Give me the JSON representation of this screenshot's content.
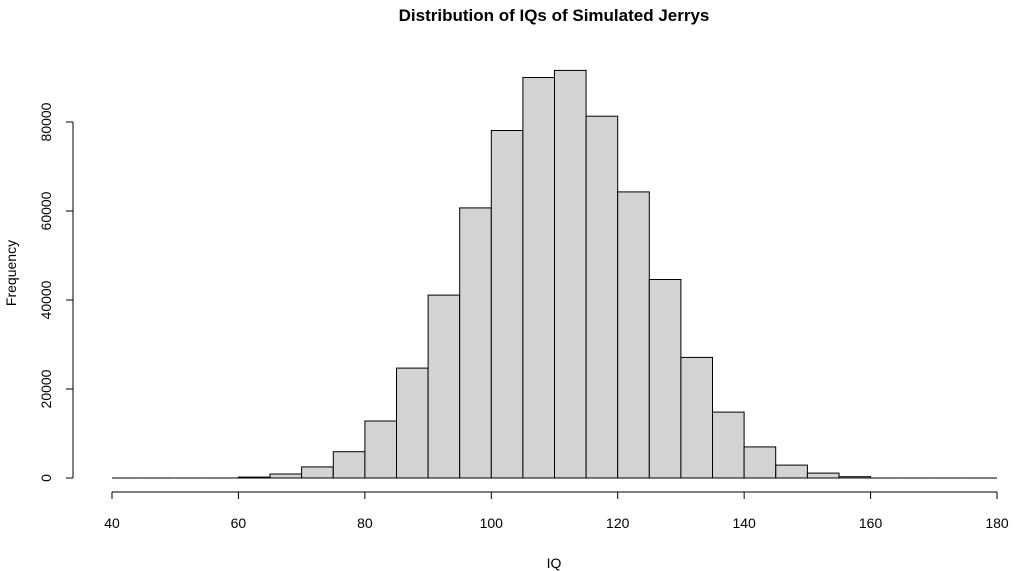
{
  "chart_data": {
    "type": "bar",
    "title": "Distribution of IQs of Simulated Jerrys",
    "xlabel": "IQ",
    "ylabel": "Frequency",
    "xlim": [
      40,
      180
    ],
    "ylim": [
      0,
      92000
    ],
    "x_ticks": [
      "40",
      "60",
      "80",
      "100",
      "120",
      "140",
      "160",
      "180"
    ],
    "y_ticks": [
      "0",
      "20000",
      "40000",
      "60000",
      "80000"
    ],
    "x_tick_values": [
      40,
      60,
      80,
      100,
      120,
      140,
      160,
      180
    ],
    "y_tick_values": [
      0,
      20000,
      40000,
      60000,
      80000
    ],
    "bin_width": 5,
    "bins": [
      {
        "start": 40,
        "end": 45,
        "count": 0
      },
      {
        "start": 45,
        "end": 50,
        "count": 0
      },
      {
        "start": 50,
        "end": 55,
        "count": 0
      },
      {
        "start": 55,
        "end": 60,
        "count": 0
      },
      {
        "start": 60,
        "end": 65,
        "count": 200
      },
      {
        "start": 65,
        "end": 70,
        "count": 900
      },
      {
        "start": 70,
        "end": 75,
        "count": 2500
      },
      {
        "start": 75,
        "end": 80,
        "count": 5900
      },
      {
        "start": 80,
        "end": 85,
        "count": 12800
      },
      {
        "start": 85,
        "end": 90,
        "count": 24700
      },
      {
        "start": 90,
        "end": 95,
        "count": 41100
      },
      {
        "start": 95,
        "end": 100,
        "count": 60700
      },
      {
        "start": 100,
        "end": 105,
        "count": 78100
      },
      {
        "start": 105,
        "end": 110,
        "count": 90000
      },
      {
        "start": 110,
        "end": 115,
        "count": 91600
      },
      {
        "start": 115,
        "end": 120,
        "count": 81300
      },
      {
        "start": 120,
        "end": 125,
        "count": 64300
      },
      {
        "start": 125,
        "end": 130,
        "count": 44600
      },
      {
        "start": 130,
        "end": 135,
        "count": 27100
      },
      {
        "start": 135,
        "end": 140,
        "count": 14800
      },
      {
        "start": 140,
        "end": 145,
        "count": 7000
      },
      {
        "start": 145,
        "end": 150,
        "count": 2900
      },
      {
        "start": 150,
        "end": 155,
        "count": 1100
      },
      {
        "start": 155,
        "end": 160,
        "count": 300
      },
      {
        "start": 160,
        "end": 165,
        "count": 0
      },
      {
        "start": 165,
        "end": 170,
        "count": 0
      },
      {
        "start": 170,
        "end": 175,
        "count": 0
      },
      {
        "start": 175,
        "end": 180,
        "count": 0
      }
    ],
    "bar_fill": "#d3d3d3",
    "bar_stroke": "#000000",
    "grid": false,
    "legend": "none"
  }
}
